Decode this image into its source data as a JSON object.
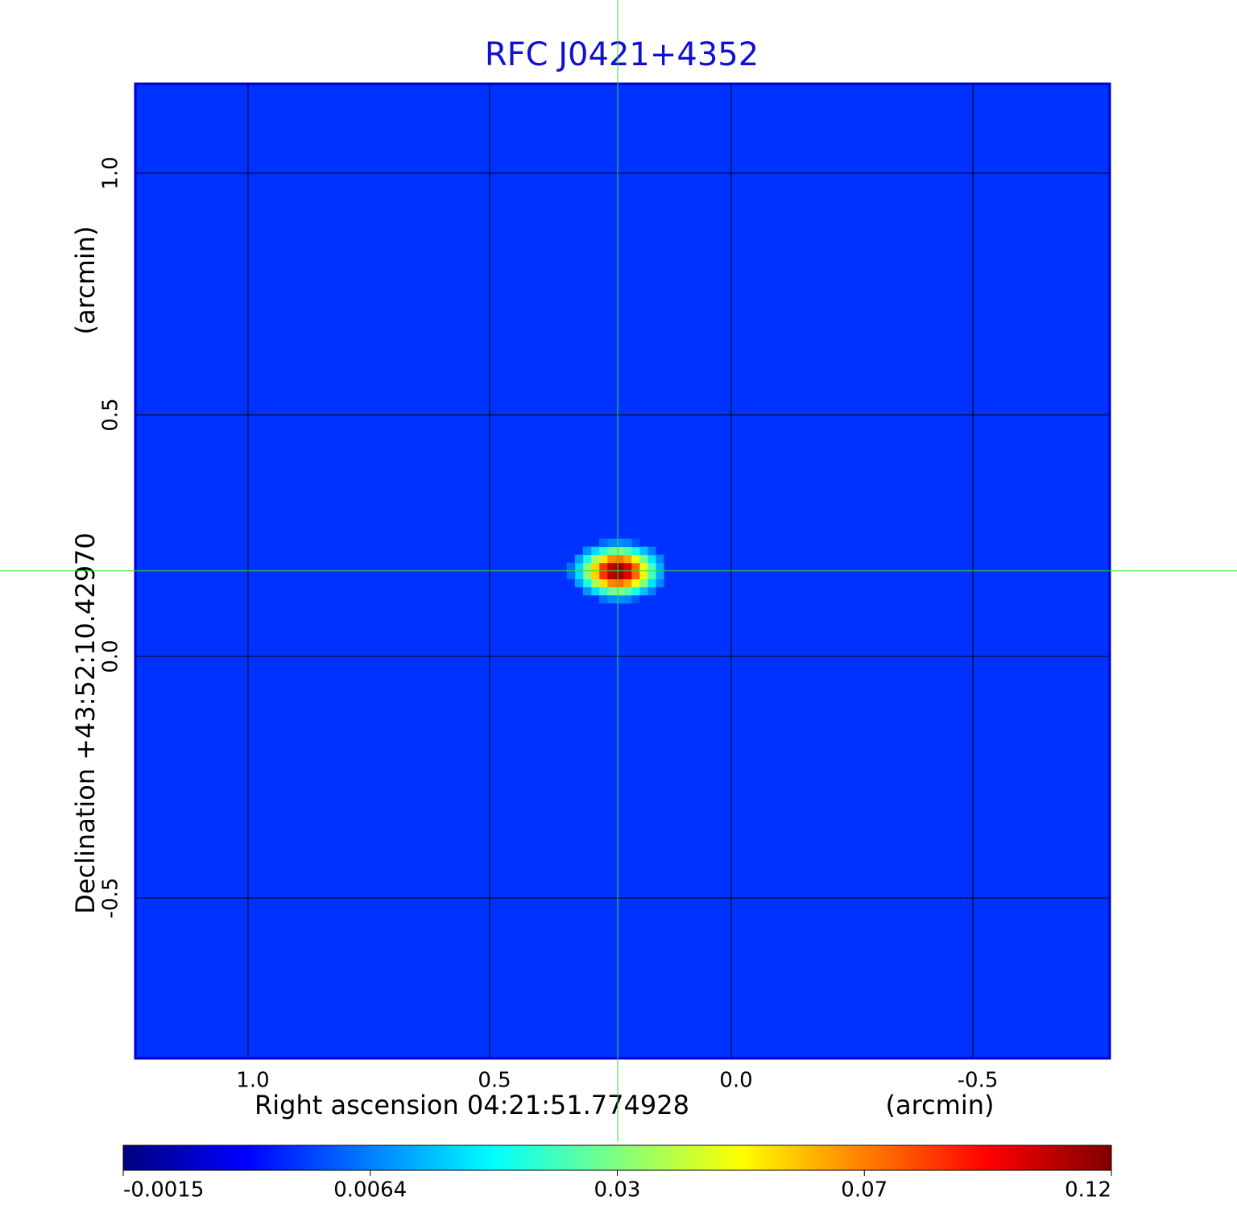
{
  "chart_data": {
    "type": "heatmap",
    "title": "RFC J0421+4352",
    "x_label": "Right ascension  04:21:51.774928",
    "x_unit": "(arcmin)",
    "y_label": "Declination  +43:52:10.42970",
    "y_unit": "(arcmin)",
    "xlim": [
      1.2333,
      -0.7833
    ],
    "ylim": [
      -0.8317,
      1.185
    ],
    "xticks": [
      {
        "value": 1,
        "label": "1.0"
      },
      0.5,
      {
        "value": 0,
        "label": "0.0"
      },
      -0.5
    ],
    "yticks": [
      {
        "value": 1,
        "label": "1.0"
      },
      0.5,
      {
        "value": 0,
        "label": "0.0"
      },
      -0.5
    ],
    "grid": true,
    "background": 0.004,
    "source": {
      "x": 0.235,
      "y": 0.177,
      "peak": 0.12,
      "width": [
        0.04,
        0.025
      ]
    },
    "colormap": [
      "#00007f",
      "#0000ff",
      "#007fff",
      "#00ffff",
      "#7fff7f",
      "#ffff00",
      "#ff7f00",
      "#ff0000",
      "#7f0000"
    ],
    "colorbar_ticks": [
      -0.0015,
      0.0064,
      0.03,
      0.07,
      0.12
    ],
    "frame_color": "#0000cc",
    "crosshair_color": "#33dd33"
  }
}
